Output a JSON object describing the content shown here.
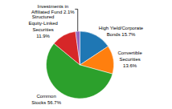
{
  "chart_data": {
    "type": "pie",
    "categories": [
      "High Yield/Corporate\nBonds 15.7%",
      "Convertible\nSecurities\n13.6%",
      "Common\nStocks 56.7%",
      "Structured\nEquity-Linked\nSecurities\n11.9%",
      "Investments in\nAffiliated Fund 2.1%"
    ],
    "values": [
      15.7,
      13.6,
      56.7,
      11.9,
      2.1
    ]
  }
}
